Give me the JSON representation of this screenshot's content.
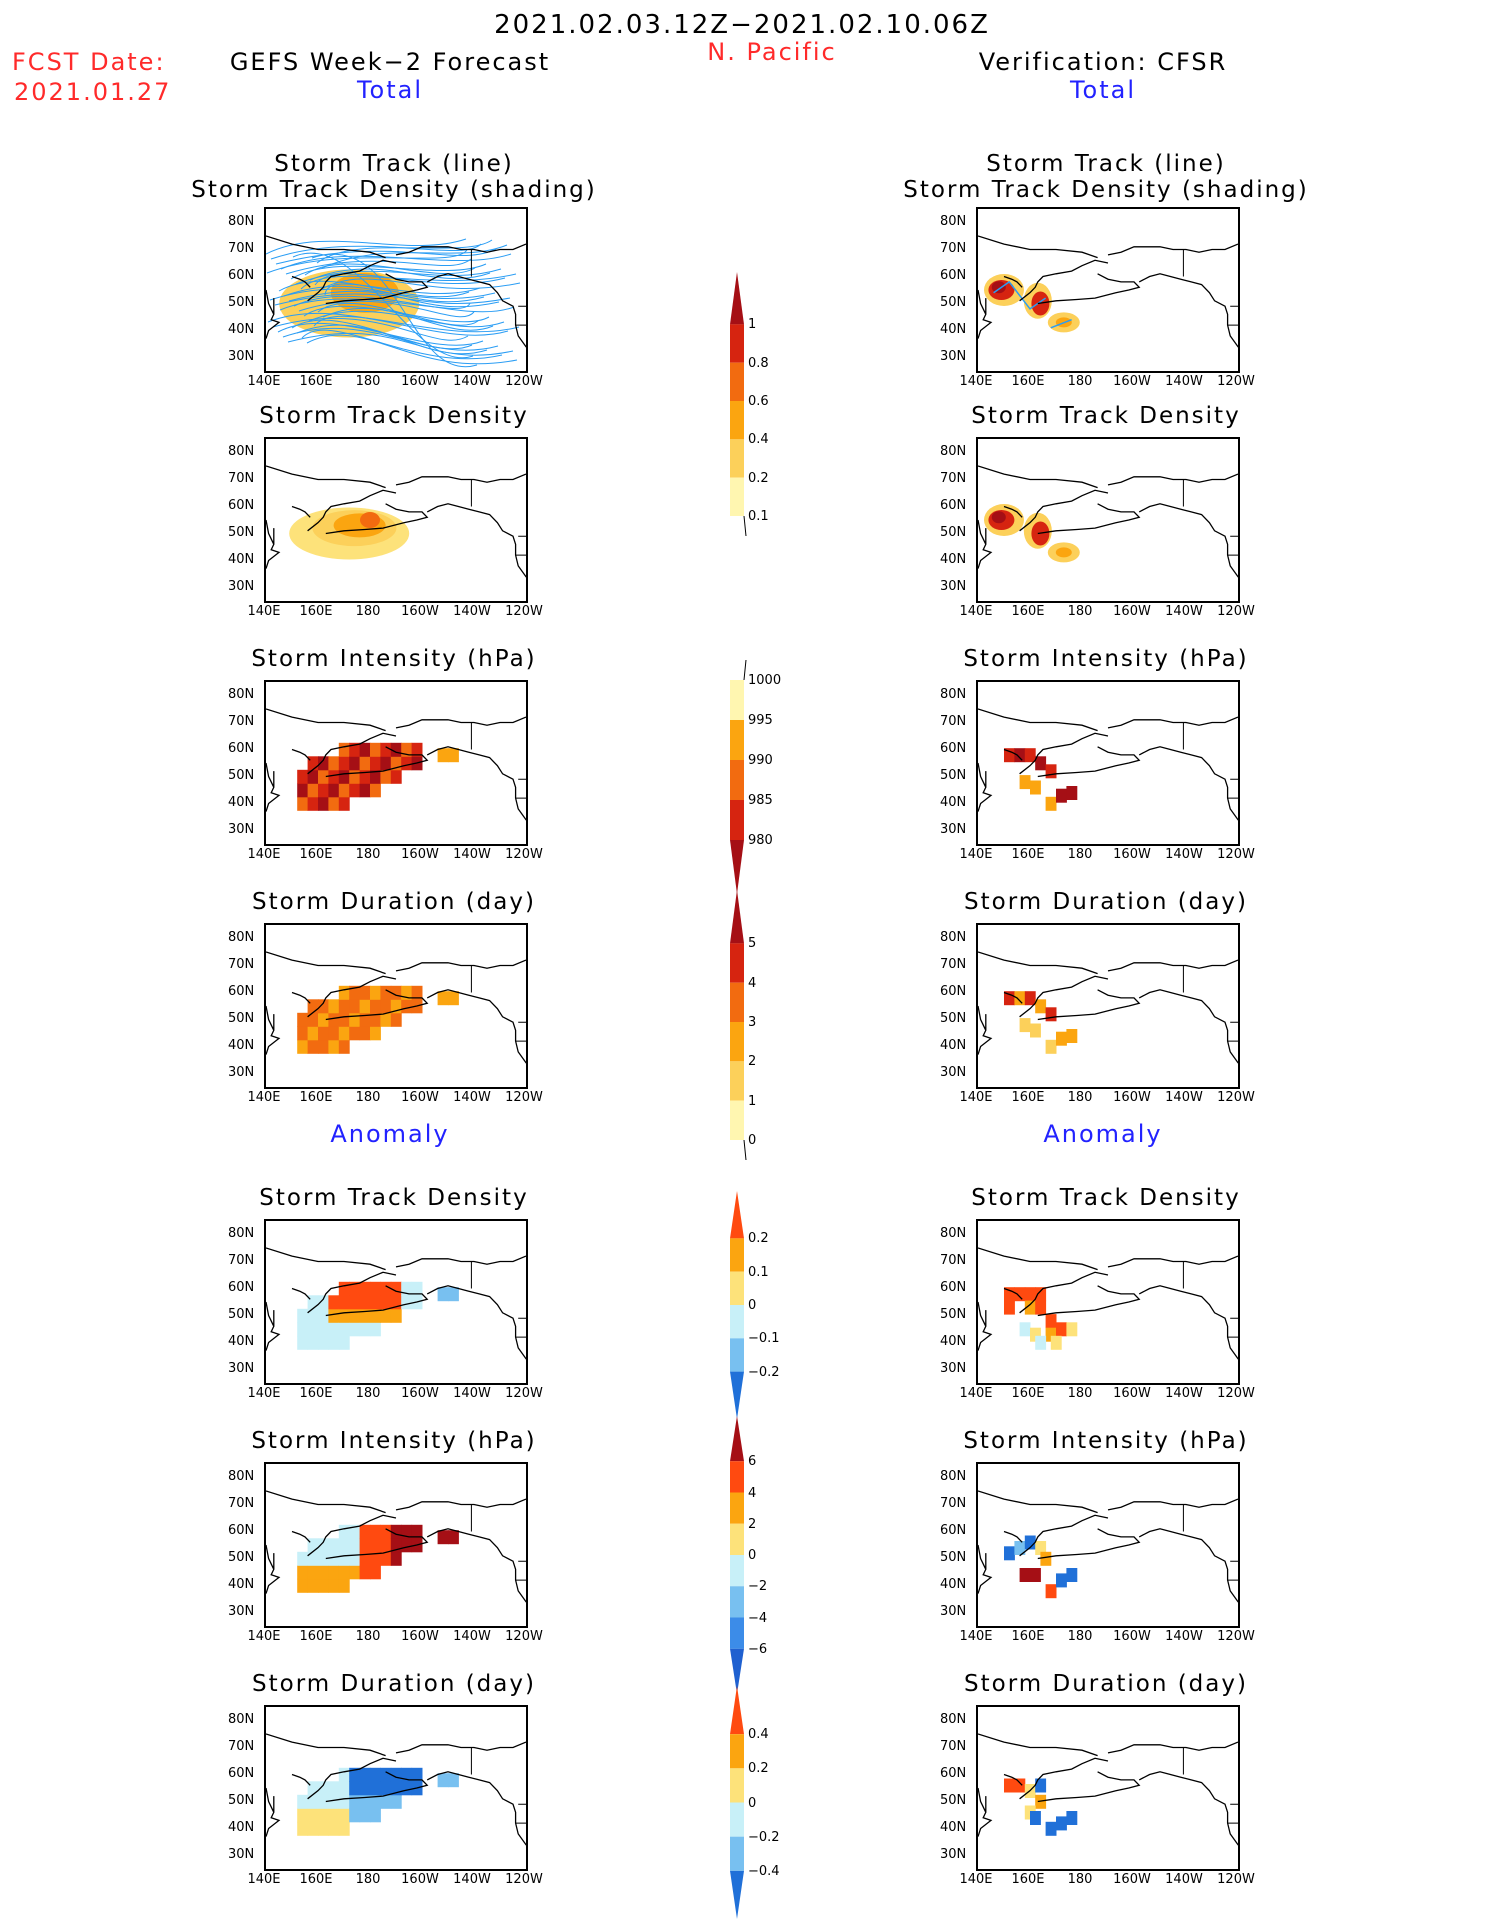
{
  "header": {
    "period": "2021.02.03.12Z−2021.02.10.06Z",
    "region": "N. Pacific",
    "fcst_label": "FCST Date:",
    "fcst_date": "2021.01.27",
    "left_title": "GEFS Week−2 Forecast",
    "right_title": "Verification: CFSR",
    "total_left": "Total",
    "total_right": "Total",
    "anomaly_left": "Anomaly",
    "anomaly_right": "Anomaly"
  },
  "panel_titles": {
    "track_line": "Storm Track (line)",
    "track_shading": "Storm Track Density (shading)",
    "density": "Storm Track Density",
    "intensity": "Storm Intensity (hPa)",
    "duration": "Storm Duration (day)"
  },
  "axes": {
    "lat_labels": [
      "80N",
      "70N",
      "60N",
      "50N",
      "40N",
      "30N"
    ],
    "lon_labels": [
      "140E",
      "160E",
      "180",
      "160W",
      "140W",
      "120W"
    ]
  },
  "colorbars": {
    "density": {
      "labels": [
        "1",
        "0.8",
        "0.6",
        "0.4",
        "0.2",
        "0.1"
      ],
      "colors": [
        "#a50f15",
        "#d62410",
        "#f26b10",
        "#fba510",
        "#fcd05a",
        "#fff6b0"
      ]
    },
    "intensity": {
      "labels": [
        "1000",
        "995",
        "990",
        "985",
        "980"
      ],
      "colors": [
        "#fff6b0",
        "#fba510",
        "#f26b10",
        "#d62410",
        "#a50f15"
      ]
    },
    "duration": {
      "labels": [
        "5",
        "4",
        "3",
        "2",
        "1",
        "0"
      ],
      "colors": [
        "#a50f15",
        "#d62410",
        "#f26b10",
        "#fba510",
        "#fcd05a",
        "#fff6b0"
      ]
    },
    "anom_density": {
      "labels": [
        "0.2",
        "0.1",
        "0",
        "−0.1",
        "−0.2"
      ],
      "colors": [
        "#ff4a10",
        "#fba510",
        "#fde27a",
        "#c8f0f8",
        "#78c0f0",
        "#2070d8"
      ]
    },
    "anom_intensity": {
      "labels": [
        "6",
        "4",
        "2",
        "0",
        "−2",
        "−4",
        "−6"
      ],
      "colors": [
        "#a50f15",
        "#ff4a10",
        "#fba510",
        "#fde27a",
        "#c8f0f8",
        "#78c0f0",
        "#3c8ce8",
        "#1f60d0"
      ]
    },
    "anom_duration": {
      "labels": [
        "0.4",
        "0.2",
        "0",
        "−0.2",
        "−0.4"
      ],
      "colors": [
        "#ff4a10",
        "#fba510",
        "#fde27a",
        "#c8f0f8",
        "#78c0f0",
        "#2070d8"
      ]
    }
  },
  "chart_data": [
    {
      "type": "heatmap",
      "panel": "forecast-total-track",
      "series": [
        {
          "name": "track density",
          "values": [
            [
              166,
              52,
              0.3
            ],
            [
              172,
              54,
              0.4
            ],
            [
              180,
              55,
              0.5
            ],
            [
              190,
              50,
              0.3
            ]
          ]
        }
      ]
    },
    {
      "type": "heatmap",
      "panel": "forecast-total-density",
      "series": [
        {
          "name": "density",
          "values": [
            [
              158,
              46,
              0.2
            ],
            [
              166,
              52,
              0.4
            ],
            [
              172,
              54,
              0.5
            ],
            [
              180,
              56,
              0.6
            ],
            [
              190,
              53,
              0.3
            ],
            [
              200,
              57,
              0.2
            ]
          ]
        }
      ]
    },
    {
      "type": "heatmap",
      "panel": "forecast-total-intensity",
      "series": [
        {
          "name": "intensity",
          "values": [
            [
              156,
              46,
              985
            ],
            [
              166,
              52,
              980
            ],
            [
              176,
              54,
              980
            ],
            [
              184,
              53,
              980
            ],
            [
              194,
              55,
              985
            ],
            [
              210,
              60,
              995
            ]
          ]
        }
      ]
    },
    {
      "type": "heatmap",
      "panel": "forecast-total-duration",
      "series": [
        {
          "name": "duration",
          "values": [
            [
              156,
              45,
              2
            ],
            [
              166,
              50,
              3
            ],
            [
              176,
              54,
              3
            ],
            [
              186,
              53,
              2
            ],
            [
              200,
              57,
              2
            ],
            [
              210,
              60,
              1
            ]
          ]
        }
      ]
    },
    {
      "type": "heatmap",
      "panel": "verification-total-density",
      "series": [
        {
          "name": "density",
          "values": [
            [
              148,
              55,
              0.8
            ],
            [
              162,
              50,
              0.8
            ],
            [
              172,
              42,
              0.4
            ]
          ]
        }
      ]
    },
    {
      "type": "heatmap",
      "panel": "verification-total-intensity",
      "series": [
        {
          "name": "intensity",
          "values": [
            [
              152,
              58,
              980
            ],
            [
              158,
              58,
              985
            ],
            [
              162,
              55,
              980
            ],
            [
              154,
              46,
              995
            ],
            [
              172,
              44,
              980
            ]
          ]
        }
      ]
    },
    {
      "type": "heatmap",
      "panel": "forecast-anomaly-density",
      "series": [
        {
          "name": "density anomaly",
          "values": [
            [
              160,
              40,
              -0.05
            ],
            [
              170,
              54,
              0.2
            ],
            [
              180,
              56,
              0.2
            ],
            [
              196,
              54,
              -0.05
            ]
          ]
        }
      ]
    },
    {
      "type": "heatmap",
      "panel": "forecast-anomaly-intensity",
      "series": [
        {
          "name": "intensity anomaly",
          "values": [
            [
              160,
              50,
              -0.5
            ],
            [
              170,
              44,
              3
            ],
            [
              190,
              46,
              6
            ],
            [
              206,
              60,
              6
            ]
          ]
        }
      ]
    },
    {
      "type": "heatmap",
      "panel": "forecast-anomaly-duration",
      "series": [
        {
          "name": "duration anomaly",
          "values": [
            [
              160,
              48,
              0.1
            ],
            [
              176,
              48,
              -0.3
            ],
            [
              190,
              50,
              -0.4
            ],
            [
              206,
              60,
              -0.1
            ]
          ]
        }
      ]
    }
  ]
}
